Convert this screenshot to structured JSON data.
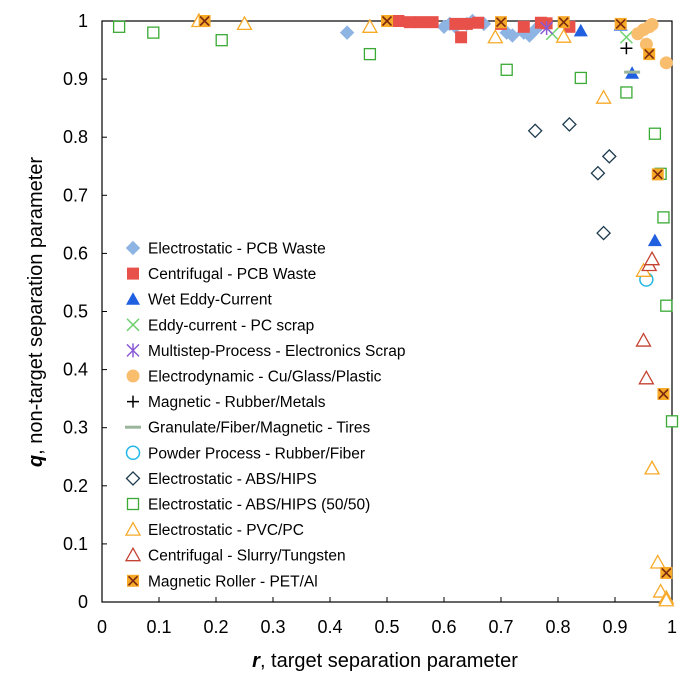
{
  "chart_data": {
    "type": "scatter",
    "xlabel": {
      "symbol": "r",
      "text": ", target separation parameter"
    },
    "ylabel": {
      "symbol": "q",
      "text": ", non-target separation parameter"
    },
    "xlim": [
      0,
      1
    ],
    "ylim": [
      0,
      1
    ],
    "xticks": [
      "0",
      "0.1",
      "0.2",
      "0.3",
      "0.4",
      "0.5",
      "0.6",
      "0.7",
      "0.8",
      "0.9",
      "1"
    ],
    "yticks": [
      "0",
      "0.1",
      "0.2",
      "0.3",
      "0.4",
      "0.5",
      "0.6",
      "0.7",
      "0.8",
      "0.9",
      "1"
    ],
    "grid": false,
    "legend_position": "left",
    "series": [
      {
        "name": "Electrostatic - PCB Waste",
        "marker": "diamond-filled",
        "color": "#8EB4E3",
        "points": [
          [
            0.43,
            0.98
          ],
          [
            0.6,
            0.99
          ],
          [
            0.61,
            0.995
          ],
          [
            0.62,
            0.99
          ],
          [
            0.64,
            0.995
          ],
          [
            0.65,
            1.0
          ],
          [
            0.67,
            0.995
          ],
          [
            0.71,
            0.98
          ],
          [
            0.72,
            0.975
          ],
          [
            0.74,
            0.98
          ],
          [
            0.75,
            0.975
          ],
          [
            0.76,
            0.985
          ]
        ]
      },
      {
        "name": "Centrifugal - PCB Waste",
        "marker": "square-filled",
        "color": "#E8504A",
        "points": [
          [
            0.52,
            1.0
          ],
          [
            0.54,
            0.998
          ],
          [
            0.56,
            0.998
          ],
          [
            0.58,
            0.998
          ],
          [
            0.62,
            0.995
          ],
          [
            0.63,
            0.972
          ],
          [
            0.64,
            0.995
          ],
          [
            0.66,
            0.997
          ],
          [
            0.7,
            0.995
          ],
          [
            0.74,
            0.99
          ],
          [
            0.77,
            0.997
          ],
          [
            0.78,
            0.996
          ],
          [
            0.82,
            0.99
          ]
        ]
      },
      {
        "name": "Wet Eddy-Current",
        "marker": "triangle-filled",
        "color": "#1F5FE0",
        "points": [
          [
            0.84,
            0.983
          ],
          [
            0.91,
            0.993
          ],
          [
            0.93,
            0.91
          ],
          [
            0.97,
            0.622
          ]
        ]
      },
      {
        "name": "Eddy-current - PC scrap",
        "marker": "x",
        "color": "#6FD26F",
        "points": [
          [
            0.79,
            0.978
          ],
          [
            0.92,
            0.972
          ]
        ]
      },
      {
        "name": "Multistep-Process - Electronics Scrap",
        "marker": "asterisk",
        "color": "#8A5AD6",
        "points": [
          [
            0.78,
            0.988
          ]
        ]
      },
      {
        "name": "Electrodynamic - Cu/Glass/Plastic",
        "marker": "circle-filled",
        "color": "#F9BD6E",
        "points": [
          [
            0.94,
            0.978
          ],
          [
            0.95,
            0.985
          ],
          [
            0.96,
            0.99
          ],
          [
            0.965,
            0.994
          ],
          [
            0.955,
            0.96
          ],
          [
            0.99,
            0.928
          ]
        ]
      },
      {
        "name": "Magnetic - Rubber/Metals",
        "marker": "plus",
        "color": "#000000",
        "points": [
          [
            0.92,
            0.953
          ]
        ]
      },
      {
        "name": "Granulate/Fiber/Magnetic - Tires",
        "marker": "dash",
        "color": "#9BB59B",
        "points": [
          [
            0.93,
            0.912
          ]
        ]
      },
      {
        "name": "Powder Process - Rubber/Fiber",
        "marker": "circle-open",
        "color": "#23B7E5",
        "points": [
          [
            0.955,
            0.555
          ]
        ]
      },
      {
        "name": "Electrostatic - ABS/HIPS",
        "marker": "diamond-open",
        "color": "#1D3A4E",
        "points": [
          [
            0.76,
            0.811
          ],
          [
            0.82,
            0.822
          ],
          [
            0.87,
            0.738
          ],
          [
            0.88,
            0.635
          ],
          [
            0.89,
            0.767
          ]
        ]
      },
      {
        "name": "Electrostatic - ABS/HIPS (50/50)",
        "marker": "square-open",
        "color": "#3AAA35",
        "points": [
          [
            0.03,
            0.99
          ],
          [
            0.09,
            0.98
          ],
          [
            0.21,
            0.967
          ],
          [
            0.47,
            0.943
          ],
          [
            0.71,
            0.916
          ],
          [
            0.84,
            0.902
          ],
          [
            0.92,
            0.877
          ],
          [
            0.97,
            0.806
          ],
          [
            0.98,
            0.737
          ],
          [
            0.985,
            0.662
          ],
          [
            0.99,
            0.51
          ],
          [
            1.0,
            0.311
          ]
        ]
      },
      {
        "name": "Electrostatic - PVC/PC",
        "marker": "triangle-open",
        "color": "#F7A928",
        "points": [
          [
            0.17,
            1.0
          ],
          [
            0.25,
            0.995
          ],
          [
            0.47,
            0.99
          ],
          [
            0.69,
            0.972
          ],
          [
            0.81,
            0.973
          ],
          [
            0.88,
            0.868
          ],
          [
            0.95,
            0.57
          ],
          [
            0.965,
            0.23
          ],
          [
            0.975,
            0.068
          ],
          [
            0.98,
            0.018
          ],
          [
            0.99,
            0.007
          ],
          [
            0.99,
            0.003
          ]
        ]
      },
      {
        "name": "Centrifugal - Slurry/Tungsten",
        "marker": "triangle-open",
        "color": "#C44232",
        "points": [
          [
            0.95,
            0.45
          ],
          [
            0.955,
            0.385
          ],
          [
            0.96,
            0.58
          ],
          [
            0.965,
            0.59
          ]
        ]
      },
      {
        "name": "Magnetic Roller - PET/Al",
        "marker": "square-x",
        "color": "#F7A928",
        "points": [
          [
            0.18,
            1.0
          ],
          [
            0.5,
            1.0
          ],
          [
            0.7,
            0.998
          ],
          [
            0.81,
            0.998
          ],
          [
            0.91,
            0.995
          ],
          [
            0.96,
            0.943
          ],
          [
            0.975,
            0.736
          ],
          [
            0.985,
            0.358
          ],
          [
            0.99,
            0.05
          ]
        ]
      }
    ]
  }
}
